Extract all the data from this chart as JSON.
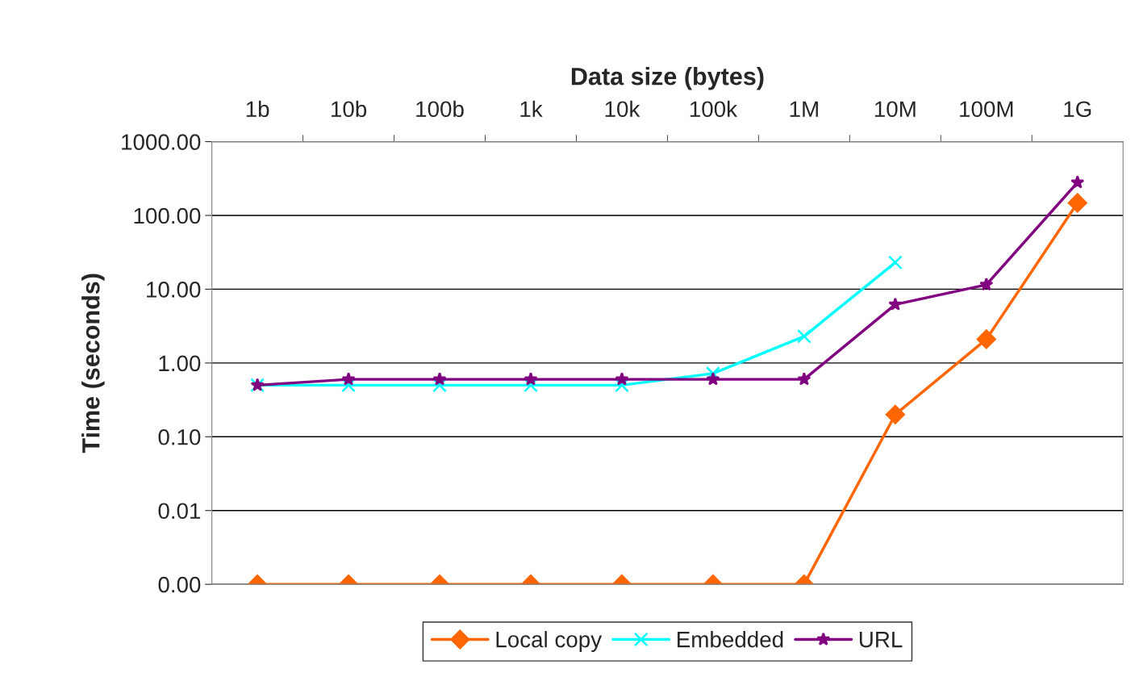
{
  "chart_data": {
    "type": "line",
    "xlabel": "Data size (bytes)",
    "ylabel": "Time (seconds)",
    "categories": [
      "1b",
      "10b",
      "100b",
      "1k",
      "10k",
      "100k",
      "1M",
      "10M",
      "100M",
      "1G"
    ],
    "series": [
      {
        "name": "Local copy",
        "color": "#ff6600",
        "marker": "diamond",
        "values": [
          0.001,
          0.001,
          0.001,
          0.001,
          0.001,
          0.001,
          0.001,
          0.2,
          2.1,
          148
        ]
      },
      {
        "name": "Embedded",
        "color": "#00ffff",
        "marker": "cross",
        "values": [
          0.5,
          0.5,
          0.5,
          0.5,
          0.5,
          0.72,
          2.3,
          23,
          null,
          null
        ]
      },
      {
        "name": "URL",
        "color": "#800080",
        "marker": "star",
        "values": [
          0.5,
          0.6,
          0.6,
          0.6,
          0.6,
          0.6,
          0.6,
          6.2,
          11.5,
          280
        ]
      }
    ],
    "log": "y",
    "ylim": [
      0.001,
      1000
    ],
    "yticks": [
      {
        "value": 0.001,
        "label": "0.00"
      },
      {
        "value": 0.01,
        "label": "0.01"
      },
      {
        "value": 0.1,
        "label": "0.10"
      },
      {
        "value": 1,
        "label": "1.00"
      },
      {
        "value": 10,
        "label": "10.00"
      },
      {
        "value": 100,
        "label": "100.00"
      },
      {
        "value": 1000,
        "label": "1000.00"
      }
    ],
    "grid": "y",
    "legend": "bottom",
    "line_style": "solid"
  }
}
